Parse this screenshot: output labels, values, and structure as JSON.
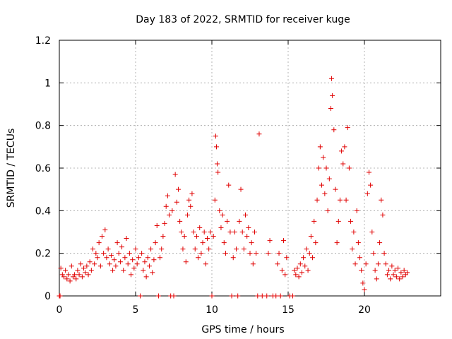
{
  "chart_data": {
    "type": "scatter",
    "title": "Day 183 of 2022, SRMTID for receiver kuge",
    "xlabel": "GPS time / hours",
    "ylabel": "SRMTID / TECUs",
    "xlim": [
      0,
      25
    ],
    "ylim": [
      0,
      1.2
    ],
    "xticks": [
      "0",
      "5",
      "10",
      "15",
      "20"
    ],
    "yticks": [
      "0",
      "0.2",
      "0.4",
      "0.6",
      "0.8",
      "1",
      "1.2"
    ],
    "grid": true,
    "marker": "+",
    "color": "#e00000",
    "series": [
      {
        "name": "SRMTID",
        "points": [
          [
            0.0,
            0.0
          ],
          [
            0.05,
            0.0
          ],
          [
            0.1,
            0.13
          ],
          [
            0.2,
            0.1
          ],
          [
            0.3,
            0.09
          ],
          [
            0.4,
            0.12
          ],
          [
            0.5,
            0.08
          ],
          [
            0.6,
            0.1
          ],
          [
            0.7,
            0.07
          ],
          [
            0.8,
            0.14
          ],
          [
            0.9,
            0.09
          ],
          [
            1.0,
            0.1
          ],
          [
            1.1,
            0.08
          ],
          [
            1.2,
            0.12
          ],
          [
            1.3,
            0.1
          ],
          [
            1.4,
            0.15
          ],
          [
            1.5,
            0.09
          ],
          [
            1.6,
            0.13
          ],
          [
            1.7,
            0.11
          ],
          [
            1.8,
            0.14
          ],
          [
            1.9,
            0.1
          ],
          [
            2.0,
            0.16
          ],
          [
            2.1,
            0.12
          ],
          [
            2.2,
            0.22
          ],
          [
            2.3,
            0.15
          ],
          [
            2.4,
            0.2
          ],
          [
            2.5,
            0.18
          ],
          [
            2.6,
            0.25
          ],
          [
            2.7,
            0.14
          ],
          [
            2.8,
            0.28
          ],
          [
            2.9,
            0.2
          ],
          [
            3.0,
            0.31
          ],
          [
            3.1,
            0.18
          ],
          [
            3.2,
            0.22
          ],
          [
            3.3,
            0.15
          ],
          [
            3.4,
            0.19
          ],
          [
            3.5,
            0.12
          ],
          [
            3.6,
            0.17
          ],
          [
            3.7,
            0.14
          ],
          [
            3.8,
            0.25
          ],
          [
            3.9,
            0.2
          ],
          [
            4.0,
            0.16
          ],
          [
            4.1,
            0.23
          ],
          [
            4.2,
            0.12
          ],
          [
            4.3,
            0.18
          ],
          [
            4.4,
            0.27
          ],
          [
            4.5,
            0.15
          ],
          [
            4.6,
            0.2
          ],
          [
            4.7,
            0.1
          ],
          [
            4.8,
            0.17
          ],
          [
            4.9,
            0.13
          ],
          [
            5.0,
            0.22
          ],
          [
            5.1,
            0.15
          ],
          [
            5.2,
            0.18
          ],
          [
            5.3,
            0.0
          ],
          [
            5.4,
            0.2
          ],
          [
            5.5,
            0.12
          ],
          [
            5.6,
            0.16
          ],
          [
            5.7,
            0.09
          ],
          [
            5.8,
            0.18
          ],
          [
            5.9,
            0.14
          ],
          [
            6.0,
            0.22
          ],
          [
            6.1,
            0.11
          ],
          [
            6.2,
            0.17
          ],
          [
            6.3,
            0.25
          ],
          [
            6.4,
            0.33
          ],
          [
            6.5,
            0.0
          ],
          [
            6.6,
            0.18
          ],
          [
            6.7,
            0.22
          ],
          [
            6.8,
            0.28
          ],
          [
            6.9,
            0.34
          ],
          [
            7.0,
            0.42
          ],
          [
            7.1,
            0.47
          ],
          [
            7.2,
            0.38
          ],
          [
            7.3,
            0.0
          ],
          [
            7.4,
            0.4
          ],
          [
            7.5,
            0.0
          ],
          [
            7.6,
            0.57
          ],
          [
            7.7,
            0.44
          ],
          [
            7.8,
            0.5
          ],
          [
            7.9,
            0.35
          ],
          [
            8.0,
            0.3
          ],
          [
            8.1,
            0.22
          ],
          [
            8.2,
            0.28
          ],
          [
            8.3,
            0.16
          ],
          [
            8.4,
            0.38
          ],
          [
            8.5,
            0.45
          ],
          [
            8.6,
            0.42
          ],
          [
            8.7,
            0.48
          ],
          [
            8.8,
            0.3
          ],
          [
            8.9,
            0.22
          ],
          [
            9.0,
            0.28
          ],
          [
            9.1,
            0.18
          ],
          [
            9.2,
            0.32
          ],
          [
            9.3,
            0.2
          ],
          [
            9.4,
            0.25
          ],
          [
            9.5,
            0.3
          ],
          [
            9.6,
            0.15
          ],
          [
            9.7,
            0.27
          ],
          [
            9.8,
            0.22
          ],
          [
            9.9,
            0.3
          ],
          [
            10.0,
            0.0
          ],
          [
            10.1,
            0.28
          ],
          [
            10.2,
            0.45
          ],
          [
            10.25,
            0.75
          ],
          [
            10.3,
            0.7
          ],
          [
            10.35,
            0.62
          ],
          [
            10.4,
            0.58
          ],
          [
            10.5,
            0.4
          ],
          [
            10.6,
            0.32
          ],
          [
            10.7,
            0.38
          ],
          [
            10.8,
            0.25
          ],
          [
            10.9,
            0.2
          ],
          [
            11.0,
            0.35
          ],
          [
            11.1,
            0.52
          ],
          [
            11.2,
            0.3
          ],
          [
            11.3,
            0.0
          ],
          [
            11.4,
            0.18
          ],
          [
            11.5,
            0.3
          ],
          [
            11.6,
            0.22
          ],
          [
            11.7,
            0.0
          ],
          [
            11.8,
            0.35
          ],
          [
            11.9,
            0.5
          ],
          [
            12.0,
            0.3
          ],
          [
            12.1,
            0.22
          ],
          [
            12.2,
            0.38
          ],
          [
            12.3,
            0.28
          ],
          [
            12.4,
            0.32
          ],
          [
            12.5,
            0.2
          ],
          [
            12.6,
            0.25
          ],
          [
            12.7,
            0.15
          ],
          [
            12.8,
            0.3
          ],
          [
            12.9,
            0.2
          ],
          [
            13.1,
            0.76
          ],
          [
            13.0,
            0.0
          ],
          [
            13.3,
            0.0
          ],
          [
            13.6,
            0.0
          ],
          [
            13.7,
            0.2
          ],
          [
            13.8,
            0.26
          ],
          [
            14.0,
            0.0
          ],
          [
            14.2,
            0.0
          ],
          [
            14.3,
            0.15
          ],
          [
            14.4,
            0.2
          ],
          [
            14.5,
            0.0
          ],
          [
            14.6,
            0.12
          ],
          [
            14.7,
            0.26
          ],
          [
            14.8,
            0.1
          ],
          [
            14.9,
            0.18
          ],
          [
            15.1,
            0.0
          ],
          [
            15.3,
            0.0
          ],
          [
            15.4,
            0.12
          ],
          [
            15.5,
            0.1
          ],
          [
            15.6,
            0.13
          ],
          [
            15.7,
            0.09
          ],
          [
            15.8,
            0.15
          ],
          [
            15.9,
            0.11
          ],
          [
            16.0,
            0.18
          ],
          [
            16.1,
            0.14
          ],
          [
            16.2,
            0.22
          ],
          [
            16.3,
            0.12
          ],
          [
            16.4,
            0.2
          ],
          [
            16.5,
            0.28
          ],
          [
            16.6,
            0.18
          ],
          [
            16.7,
            0.35
          ],
          [
            16.8,
            0.25
          ],
          [
            16.9,
            0.45
          ],
          [
            17.0,
            0.6
          ],
          [
            17.1,
            0.7
          ],
          [
            17.2,
            0.52
          ],
          [
            17.3,
            0.65
          ],
          [
            17.4,
            0.48
          ],
          [
            17.5,
            0.6
          ],
          [
            17.6,
            0.4
          ],
          [
            17.7,
            0.55
          ],
          [
            17.8,
            0.88
          ],
          [
            17.85,
            1.02
          ],
          [
            17.9,
            0.94
          ],
          [
            18.0,
            0.78
          ],
          [
            18.1,
            0.5
          ],
          [
            18.2,
            0.25
          ],
          [
            18.3,
            0.35
          ],
          [
            18.4,
            0.45
          ],
          [
            18.5,
            0.68
          ],
          [
            18.6,
            0.62
          ],
          [
            18.7,
            0.7
          ],
          [
            18.8,
            0.45
          ],
          [
            18.9,
            0.79
          ],
          [
            19.0,
            0.6
          ],
          [
            19.1,
            0.35
          ],
          [
            19.2,
            0.22
          ],
          [
            19.3,
            0.3
          ],
          [
            19.4,
            0.15
          ],
          [
            19.5,
            0.4
          ],
          [
            19.6,
            0.25
          ],
          [
            19.7,
            0.18
          ],
          [
            19.8,
            0.12
          ],
          [
            19.9,
            0.06
          ],
          [
            20.0,
            0.03
          ],
          [
            20.1,
            0.15
          ],
          [
            20.2,
            0.48
          ],
          [
            20.3,
            0.58
          ],
          [
            20.4,
            0.52
          ],
          [
            20.5,
            0.3
          ],
          [
            20.6,
            0.2
          ],
          [
            20.7,
            0.12
          ],
          [
            20.8,
            0.08
          ],
          [
            20.9,
            0.15
          ],
          [
            21.0,
            0.25
          ],
          [
            21.1,
            0.45
          ],
          [
            21.2,
            0.38
          ],
          [
            21.3,
            0.2
          ],
          [
            21.4,
            0.15
          ],
          [
            21.5,
            0.1
          ],
          [
            21.6,
            0.12
          ],
          [
            21.7,
            0.08
          ],
          [
            21.8,
            0.14
          ],
          [
            21.9,
            0.1
          ],
          [
            22.0,
            0.12
          ],
          [
            22.1,
            0.09
          ],
          [
            22.2,
            0.13
          ],
          [
            22.3,
            0.08
          ],
          [
            22.4,
            0.11
          ],
          [
            22.5,
            0.09
          ],
          [
            22.6,
            0.12
          ],
          [
            22.7,
            0.1
          ],
          [
            22.8,
            0.11
          ]
        ]
      }
    ]
  }
}
